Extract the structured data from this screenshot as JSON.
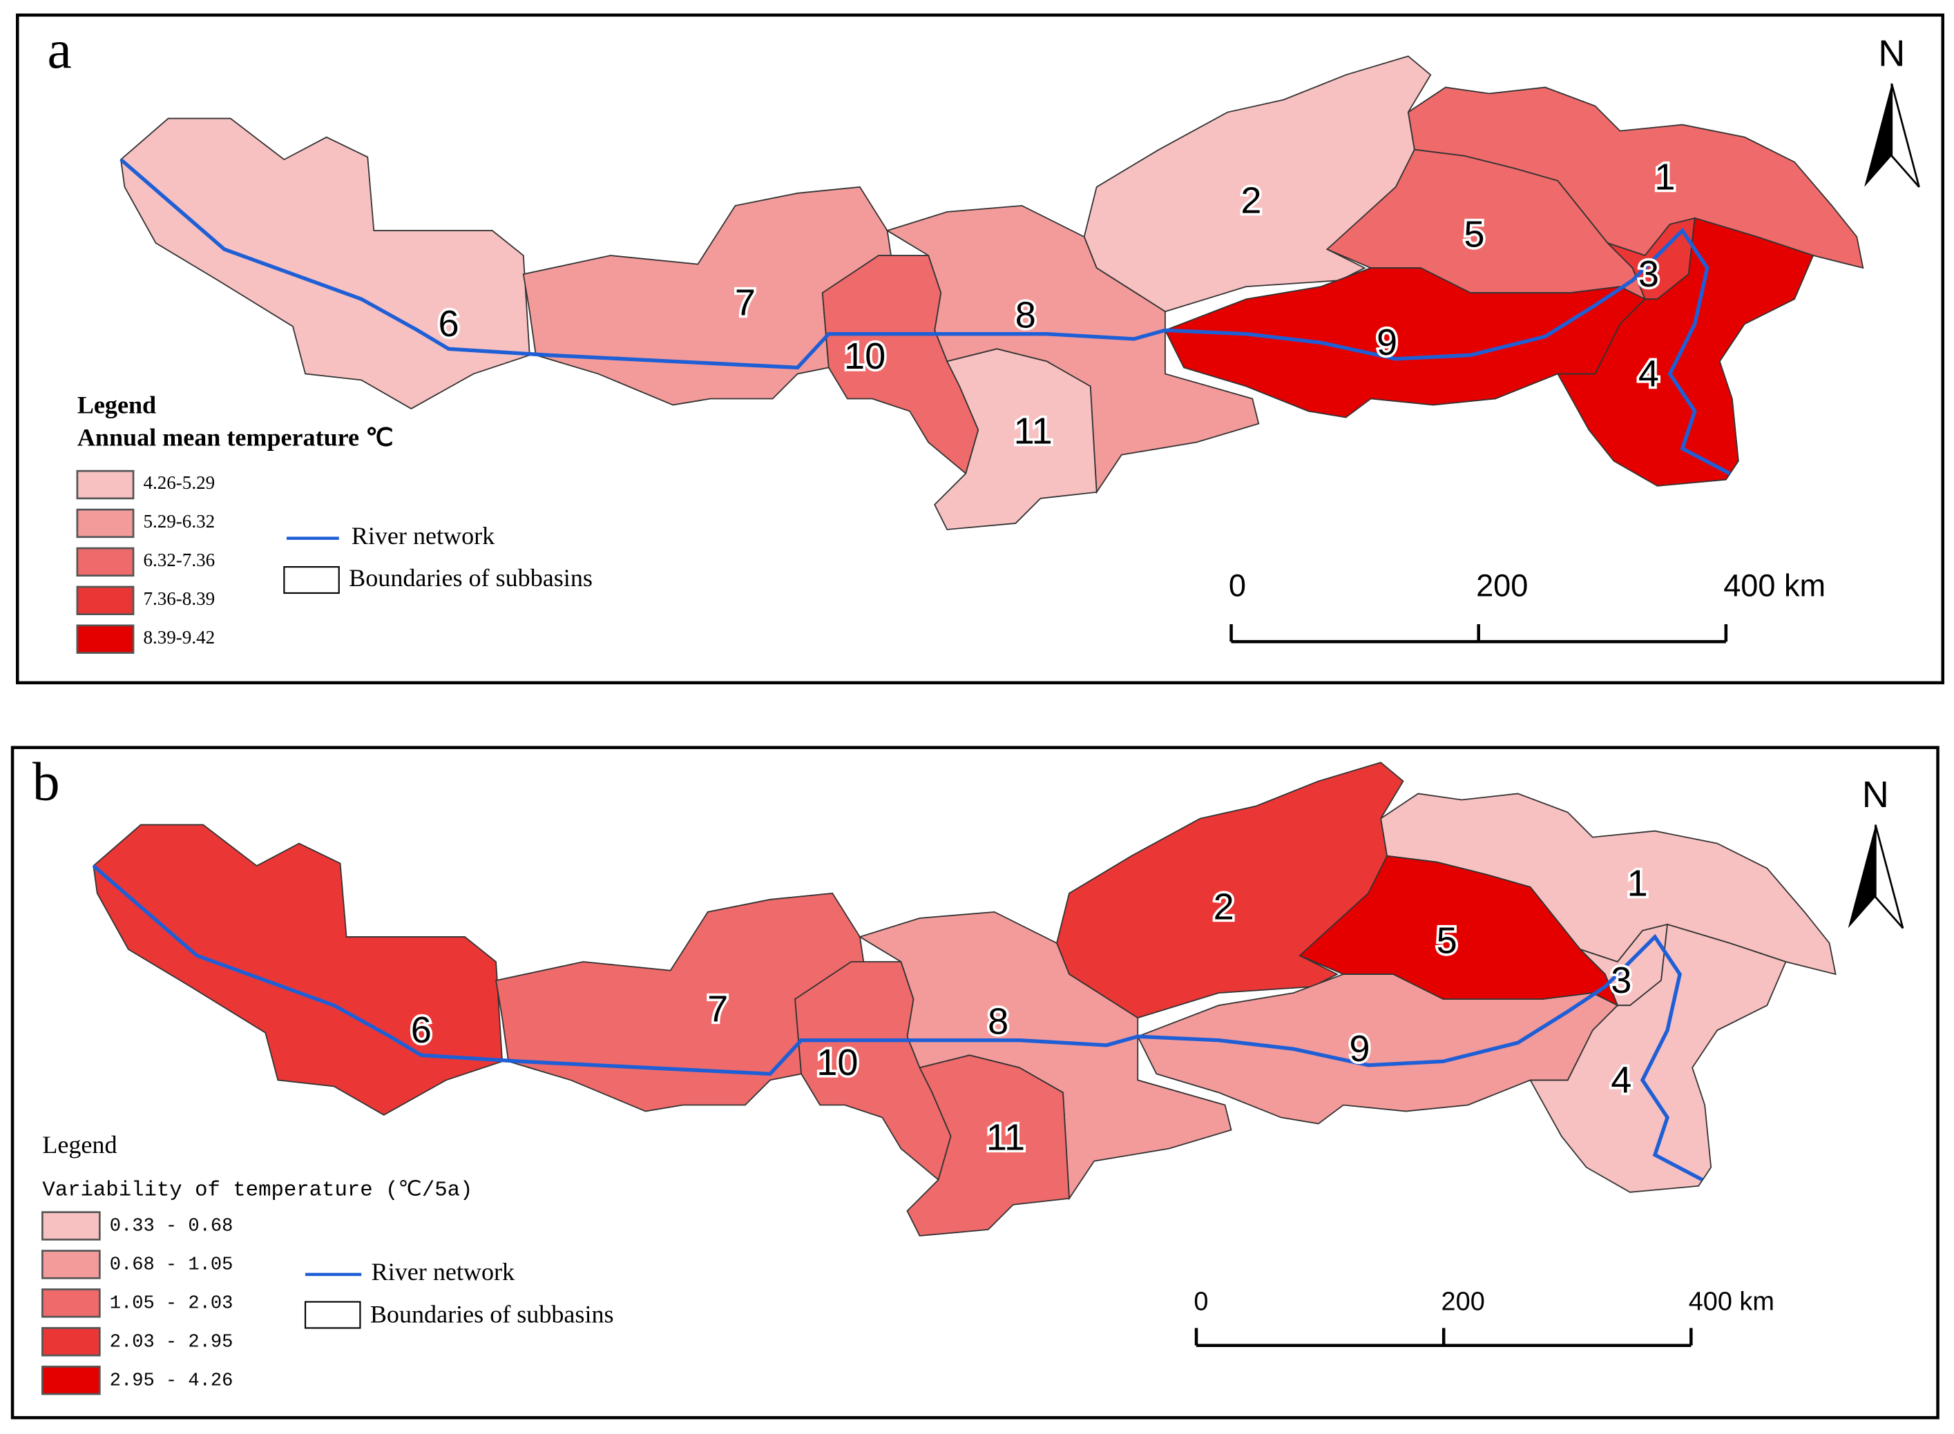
{
  "panels": [
    {
      "label": "a",
      "north": "N",
      "legend_title": "Legend",
      "legend_subtitle": "Annual mean temperature  ℃",
      "classes": [
        {
          "label": "4.26-5.29",
          "color": "#f8c1c1"
        },
        {
          "label": "5.29-6.32",
          "color": "#f39b9b"
        },
        {
          "label": "6.32-7.36",
          "color": "#ef6a6a"
        },
        {
          "label": "7.36-8.39",
          "color": "#eb3636"
        },
        {
          "label": "8.39-9.42",
          "color": "#e50000"
        }
      ],
      "river_label": "River network",
      "boundary_label": "Boundaries of subbasins",
      "scale_bar": {
        "xlim": [
          0,
          400
        ],
        "ticks": [
          0,
          200,
          {
            "value": 400,
            "label": "400 km"
          }
        ]
      },
      "subbasins": [
        {
          "label": "1",
          "color": "#ef6a6a"
        },
        {
          "label": "2",
          "color": "#f8c1c1"
        },
        {
          "label": "3",
          "color": "#eb3636"
        },
        {
          "label": "4",
          "color": "#e50000"
        },
        {
          "label": "5",
          "color": "#ef6a6a"
        },
        {
          "label": "6",
          "color": "#f8c1c1"
        },
        {
          "label": "7",
          "color": "#f39b9b"
        },
        {
          "label": "8",
          "color": "#f39b9b"
        },
        {
          "label": "9",
          "color": "#e50000"
        },
        {
          "label": "10",
          "color": "#ef6a6a"
        },
        {
          "label": "11",
          "color": "#f8c1c1"
        }
      ]
    },
    {
      "label": "b",
      "north": "N",
      "legend_title": "Legend",
      "legend_subtitle": "Variability of temperature (℃/5a)",
      "classes": [
        {
          "label": "0.33 - 0.68",
          "color": "#f8c1c1"
        },
        {
          "label": "0.68 - 1.05",
          "color": "#f39b9b"
        },
        {
          "label": "1.05 - 2.03",
          "color": "#ef6a6a"
        },
        {
          "label": "2.03 - 2.95",
          "color": "#eb3636"
        },
        {
          "label": "2.95 - 4.26",
          "color": "#e50000"
        }
      ],
      "river_label": "River network",
      "boundary_label": "Boundaries of subbasins",
      "scale_bar": {
        "xlim": [
          0,
          400
        ],
        "ticks": [
          0,
          200,
          {
            "value": 400,
            "label": "400 km"
          }
        ]
      },
      "subbasins": [
        {
          "label": "1",
          "color": "#f8c1c1"
        },
        {
          "label": "2",
          "color": "#eb3636"
        },
        {
          "label": "3",
          "color": "#f8c1c1"
        },
        {
          "label": "4",
          "color": "#f8c1c1"
        },
        {
          "label": "5",
          "color": "#e50000"
        },
        {
          "label": "6",
          "color": "#eb3636"
        },
        {
          "label": "7",
          "color": "#ef6a6a"
        },
        {
          "label": "8",
          "color": "#f39b9b"
        },
        {
          "label": "9",
          "color": "#f39b9b"
        },
        {
          "label": "10",
          "color": "#ef6a6a"
        },
        {
          "label": "11",
          "color": "#ef6a6a"
        }
      ]
    }
  ]
}
